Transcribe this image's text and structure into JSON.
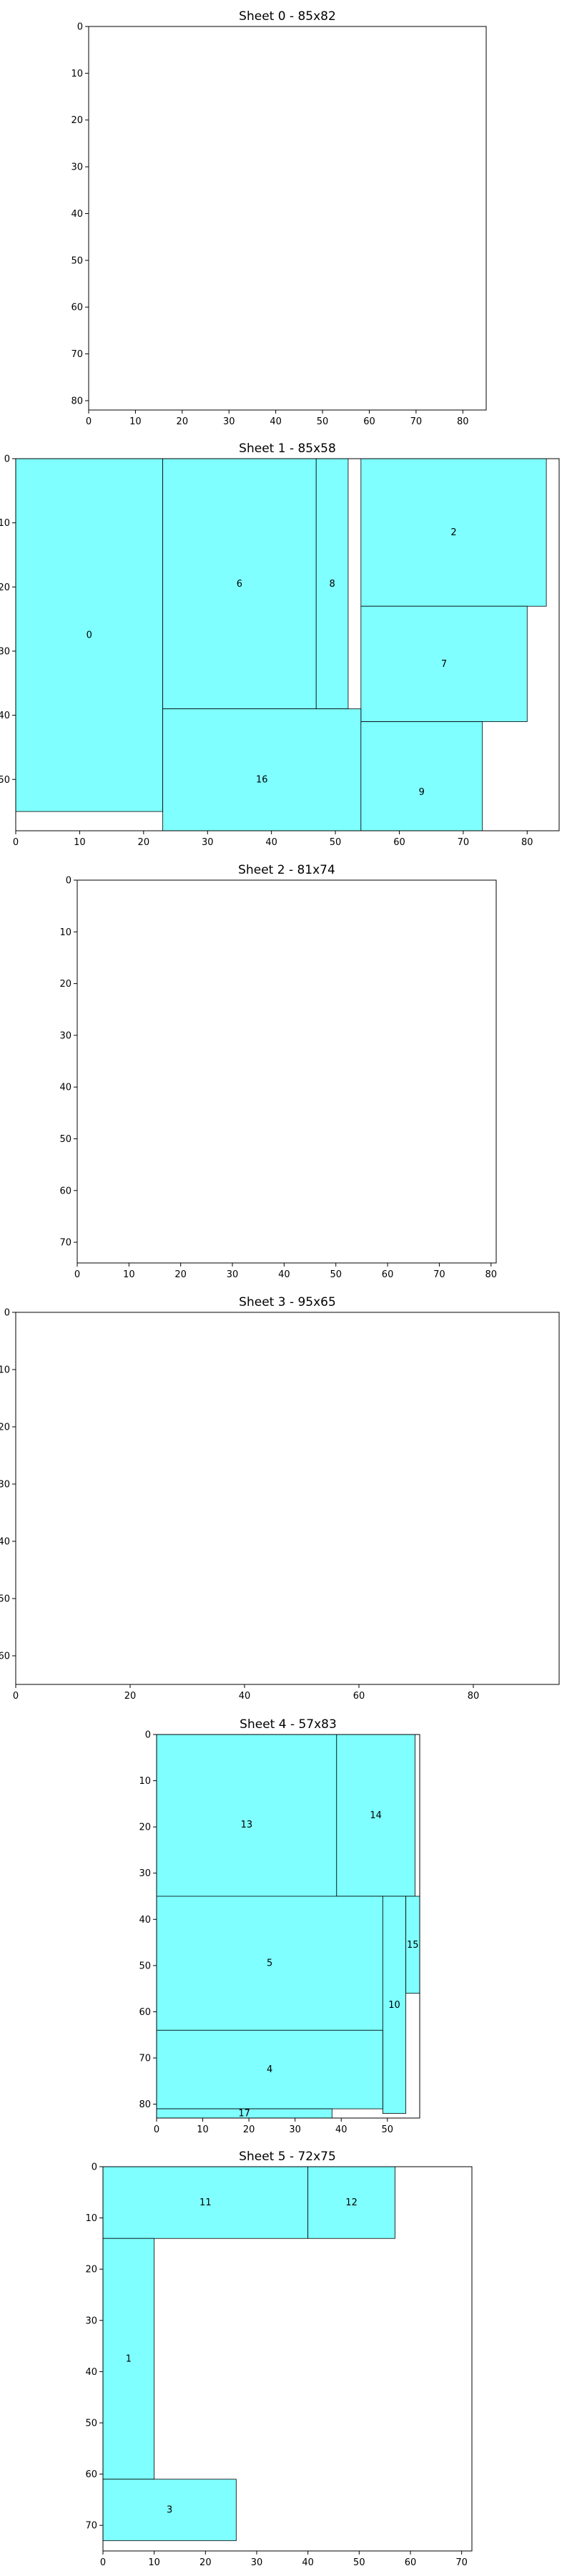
{
  "chart_data": [
    {
      "type": "sheet-layout",
      "title": "Sheet 0 - 85x82",
      "xlim": [
        0,
        85
      ],
      "ylim": [
        0,
        82
      ],
      "xticks": [
        0,
        10,
        20,
        30,
        40,
        50,
        60,
        70,
        80
      ],
      "yticks": [
        0,
        10,
        20,
        30,
        40,
        50,
        60,
        70,
        80
      ],
      "y_inverted": true,
      "fill_color": "#7fffff",
      "pieces": []
    },
    {
      "type": "sheet-layout",
      "title": "Sheet 1 - 85x58",
      "xlim": [
        0,
        85
      ],
      "ylim": [
        0,
        58
      ],
      "xticks": [
        0,
        10,
        20,
        30,
        40,
        50,
        60,
        70,
        80
      ],
      "yticks": [
        0,
        10,
        20,
        30,
        40,
        50
      ],
      "y_inverted": true,
      "fill_color": "#7fffff",
      "pieces": [
        {
          "label": "0",
          "x": 0,
          "y": 0,
          "w": 23,
          "h": 55
        },
        {
          "label": "6",
          "x": 23,
          "y": 0,
          "w": 24,
          "h": 39
        },
        {
          "label": "8",
          "x": 47,
          "y": 0,
          "w": 5,
          "h": 39
        },
        {
          "label": "2",
          "x": 54,
          "y": 0,
          "w": 29,
          "h": 23
        },
        {
          "label": "7",
          "x": 54,
          "y": 23,
          "w": 26,
          "h": 18
        },
        {
          "label": "16",
          "x": 23,
          "y": 39,
          "w": 31,
          "h": 22
        },
        {
          "label": "9",
          "x": 54,
          "y": 41,
          "w": 19,
          "h": 22
        }
      ]
    },
    {
      "type": "sheet-layout",
      "title": "Sheet 2 - 81x74",
      "xlim": [
        0,
        81
      ],
      "ylim": [
        0,
        74
      ],
      "xticks": [
        0,
        10,
        20,
        30,
        40,
        50,
        60,
        70,
        80
      ],
      "yticks": [
        0,
        10,
        20,
        30,
        40,
        50,
        60,
        70
      ],
      "y_inverted": true,
      "fill_color": "#7fffff",
      "pieces": []
    },
    {
      "type": "sheet-layout",
      "title": "Sheet 3 - 95x65",
      "xlim": [
        0,
        95
      ],
      "ylim": [
        0,
        65
      ],
      "xticks": [
        0,
        20,
        40,
        60,
        80
      ],
      "yticks": [
        0,
        10,
        20,
        30,
        40,
        50,
        60
      ],
      "y_inverted": true,
      "fill_color": "#7fffff",
      "pieces": []
    },
    {
      "type": "sheet-layout",
      "title": "Sheet 4 - 57x83",
      "xlim": [
        0,
        57
      ],
      "ylim": [
        0,
        83
      ],
      "xticks": [
        0,
        10,
        20,
        30,
        40,
        50
      ],
      "yticks": [
        0,
        10,
        20,
        30,
        40,
        50,
        60,
        70,
        80
      ],
      "y_inverted": true,
      "fill_color": "#7fffff",
      "pieces": [
        {
          "label": "13",
          "x": 0,
          "y": 0,
          "w": 39,
          "h": 39
        },
        {
          "label": "14",
          "x": 39,
          "y": 0,
          "w": 17,
          "h": 35
        },
        {
          "label": "5",
          "x": 0,
          "y": 35,
          "w": 49,
          "h": 29
        },
        {
          "label": "10",
          "x": 49,
          "y": 35,
          "w": 5,
          "h": 47
        },
        {
          "label": "15",
          "x": 54,
          "y": 35,
          "w": 3,
          "h": 21
        },
        {
          "label": "4",
          "x": 0,
          "y": 64,
          "w": 49,
          "h": 17
        },
        {
          "label": "17",
          "x": 0,
          "y": 81,
          "w": 38,
          "h": 2
        }
      ]
    },
    {
      "type": "sheet-layout",
      "title": "Sheet 5 - 72x75",
      "xlim": [
        0,
        72
      ],
      "ylim": [
        0,
        75
      ],
      "xticks": [
        0,
        10,
        20,
        30,
        40,
        50,
        60,
        70
      ],
      "yticks": [
        0,
        10,
        20,
        30,
        40,
        50,
        60,
        70
      ],
      "y_inverted": true,
      "fill_color": "#7fffff",
      "pieces": [
        {
          "label": "11",
          "x": 0,
          "y": 0,
          "w": 40,
          "h": 14
        },
        {
          "label": "12",
          "x": 40,
          "y": 0,
          "w": 17,
          "h": 14
        },
        {
          "label": "1",
          "x": 0,
          "y": 14,
          "w": 10,
          "h": 47
        },
        {
          "label": "3",
          "x": 0,
          "y": 61,
          "w": 26,
          "h": 12
        }
      ]
    }
  ]
}
